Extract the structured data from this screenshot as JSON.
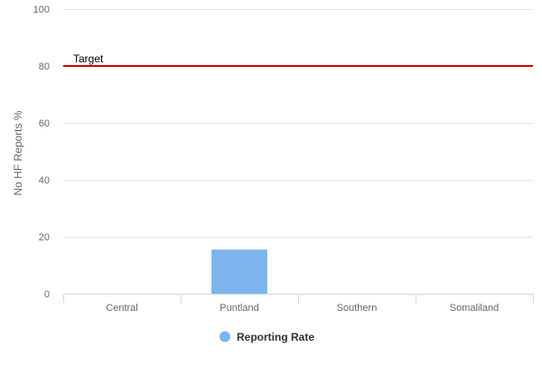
{
  "chart_data": {
    "type": "bar",
    "title": "",
    "xlabel": "",
    "ylabel": "No HF Reports %",
    "categories": [
      "Central",
      "Puntland",
      "Southern",
      "Somaliland"
    ],
    "series": [
      {
        "name": "Reporting Rate",
        "values": [
          0,
          15.5,
          0,
          0
        ],
        "color": "#7cb5ec"
      }
    ],
    "ylim": [
      0,
      100
    ],
    "yticks": [
      0,
      20,
      40,
      60,
      80,
      100
    ],
    "grid": true,
    "legend_position": "bottom-center",
    "plot_lines": [
      {
        "label": "Target",
        "value": 80,
        "color": "#d40000"
      }
    ],
    "colors": {
      "grid": "#e6e6e6",
      "axis_line": "#ccd6eb",
      "tick_label": "#666666",
      "axis_title": "#666666",
      "legend_text": "#333333"
    }
  }
}
